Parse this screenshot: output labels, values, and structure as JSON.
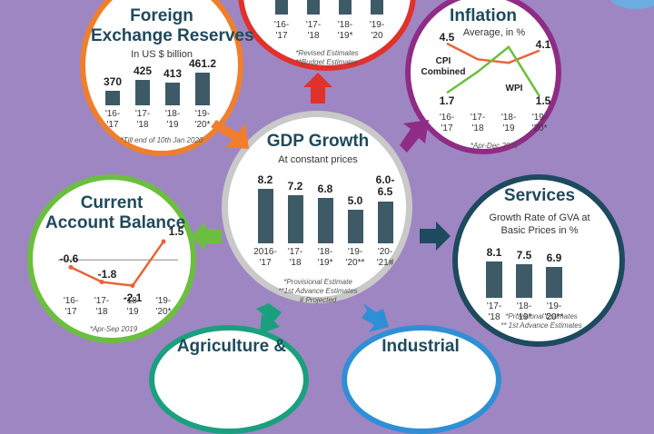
{
  "colors": {
    "background": "#9e86c2",
    "bar": "#3d5a66",
    "forex_ring": "#ef7f2d",
    "top_ring": "#e0312b",
    "inflation_ring": "#8e2c86",
    "gdp_ring": "#c9c9c9",
    "current_account_ring": "#6cbf3e",
    "services_ring": "#1d4a5e",
    "agriculture_ring": "#1aa07e",
    "industrial_ring": "#2f8fd6",
    "cpi_line": "#e8643a",
    "wpi_line": "#6cbf3e"
  },
  "forex": {
    "title_line1": "Foreign",
    "title_line2": "Exchange Reserves",
    "subtitle": "In US $ billion",
    "footnote": "*Till end of 10th Jan 2020"
  },
  "top_panel": {
    "footnote1": "*Revised Estimates",
    "footnote2": "**Budget Estimates"
  },
  "inflation": {
    "title": "Inflation",
    "subtitle": "Average, in %",
    "cpi_label_line1": "CPI",
    "cpi_label_line2": "Combined",
    "wpi_label": "WPI",
    "footnote": "*Apr-Dec 2019"
  },
  "gdp": {
    "title": "GDP Growth",
    "subtitle": "At constant prices",
    "footnote1": "*Provisional Estimate",
    "footnote2": "**1st Advance Estimates",
    "footnote3": "# Projected"
  },
  "current_account": {
    "title_line1": "Current",
    "title_line2": "Account Balance",
    "footnote": "*Apr-Sep 2019"
  },
  "services": {
    "title": "Services",
    "subtitle_line1": "Growth Rate of GVA at",
    "subtitle_line2": "Basic Prices in %",
    "footnote1": "*Provisional Estimates",
    "footnote2": "** 1st Advance Estimates"
  },
  "agriculture": {
    "title": "Agriculture &"
  },
  "industrial": {
    "title": "Industrial"
  },
  "chart_data": [
    {
      "type": "bar",
      "panel": "forex",
      "categories": [
        "'16-'17",
        "'17-'18",
        "'18-'19",
        "'19-'20*"
      ],
      "values": [
        370,
        425,
        413,
        461.2
      ],
      "value_labels": [
        "370",
        "425",
        "413",
        "461.2"
      ]
    },
    {
      "type": "bar",
      "panel": "top",
      "categories": [
        "'16-'17",
        "'17-'18",
        "'18-'19*",
        "'19-'20"
      ]
    },
    {
      "type": "line",
      "panel": "inflation",
      "categories": [
        "'16-'17",
        "'17-'18",
        "'18-'19",
        "'19-'20*"
      ],
      "series": [
        {
          "name": "CPI Combined",
          "values": [
            4.5,
            3.6,
            3.4,
            4.1
          ]
        },
        {
          "name": "WPI",
          "values": [
            1.7,
            2.9,
            4.3,
            1.5
          ]
        }
      ],
      "point_labels": {
        "cpi_first": "4.5",
        "cpi_last": "4.1",
        "wpi_first": "1.7",
        "wpi_last": "1.5"
      }
    },
    {
      "type": "bar",
      "panel": "gdp",
      "categories": [
        "2016-'17",
        "'17-'18",
        "'18-'19*",
        "'19-'20**",
        "'20-'21#"
      ],
      "values": [
        8.2,
        7.2,
        6.8,
        5.0,
        6.25
      ],
      "value_labels": [
        "8.2",
        "7.2",
        "6.8",
        "5.0",
        "6.0-6.5"
      ]
    },
    {
      "type": "line",
      "panel": "current_account",
      "categories": [
        "'16-'17",
        "'17-'18",
        "'18-'19",
        "'19-'20*"
      ],
      "series": [
        {
          "values": [
            -0.6,
            -1.8,
            -2.1,
            1.5
          ]
        }
      ],
      "value_labels": [
        "-0.6",
        "-1.8",
        "-2.1",
        "1.5"
      ]
    },
    {
      "type": "bar",
      "panel": "services",
      "categories": [
        "'17-'18",
        "'18-'19*",
        "'19-'20**"
      ],
      "values": [
        8.1,
        7.5,
        6.9
      ],
      "value_labels": [
        "8.1",
        "7.5",
        "6.9"
      ]
    }
  ]
}
